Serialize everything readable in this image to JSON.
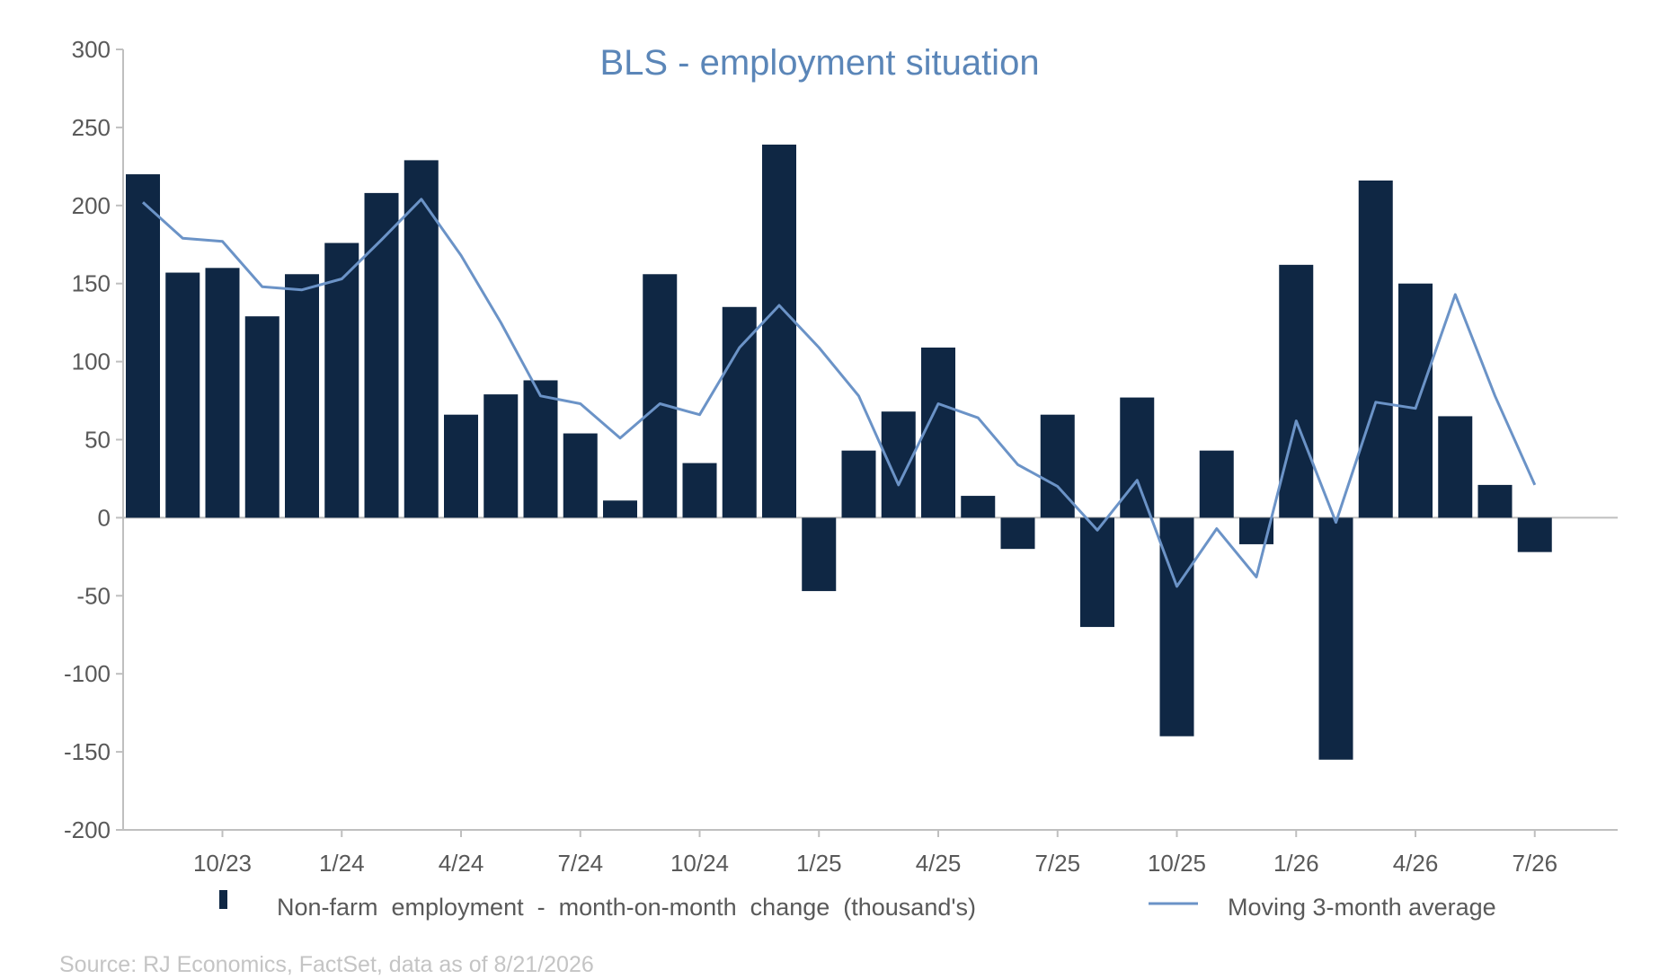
{
  "chart_data": {
    "type": "bar",
    "title": "BLS - employment situation",
    "x_tick_labels": [
      "10/23",
      "1/24",
      "4/24",
      "7/24",
      "10/24",
      "1/25",
      "4/25",
      "7/25",
      "10/25",
      "1/26",
      "4/26",
      "7/26"
    ],
    "x": [
      "8/23",
      "9/23",
      "10/23",
      "11/23",
      "12/23",
      "1/24",
      "2/24",
      "3/24",
      "4/24",
      "5/24",
      "6/24",
      "7/24",
      "8/24",
      "9/24",
      "10/24",
      "11/24",
      "12/24",
      "1/25",
      "2/25",
      "3/25",
      "4/25",
      "5/25",
      "6/25",
      "7/25",
      "8/25",
      "9/25",
      "10/25",
      "11/25",
      "12/25",
      "1/26",
      "2/26",
      "3/26",
      "4/26",
      "5/26",
      "6/26",
      "7/26"
    ],
    "series": [
      {
        "name": "Non-farm  employment  -  month-on-month  change  (thousand's)",
        "type": "bar",
        "color": "#0f2744",
        "values": [
          220,
          157,
          160,
          129,
          156,
          176,
          208,
          229,
          66,
          79,
          88,
          54,
          11,
          156,
          35,
          135,
          239,
          -47,
          43,
          68,
          109,
          14,
          -20,
          66,
          -70,
          77,
          -140,
          43,
          -17,
          162,
          -155,
          216,
          150,
          65,
          21,
          -22
        ]
      },
      {
        "name": "Moving 3-month average",
        "type": "line",
        "color": "#6b93c7",
        "values": [
          202,
          179,
          177,
          148,
          146,
          153,
          178,
          204,
          168,
          125,
          78,
          73,
          51,
          73,
          66,
          109,
          136,
          109,
          78,
          21,
          73,
          64,
          34,
          20,
          -8,
          24,
          -44,
          -7,
          -38,
          62,
          -3,
          74,
          70,
          143,
          78,
          21
        ]
      }
    ],
    "ylim": [
      -200,
      300
    ],
    "yticks": [
      300,
      250,
      200,
      150,
      100,
      50,
      0,
      -50,
      -100,
      -150,
      -200
    ],
    "legend_position": "bottom",
    "grid": false
  },
  "source": "Source: RJ Economics, FactSet, data as of 8/21/2026"
}
